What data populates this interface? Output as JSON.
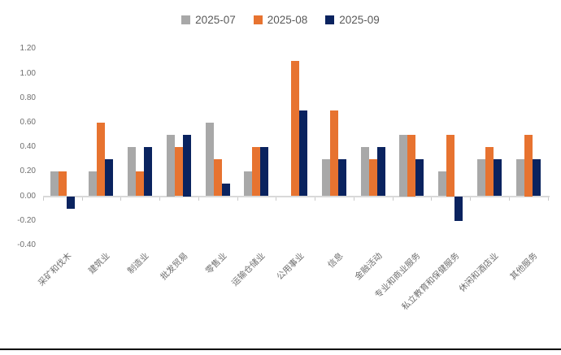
{
  "chart_data": {
    "type": "bar",
    "title": "",
    "xlabel": "",
    "ylabel": "",
    "categories": [
      "采矿和伐木",
      "建筑业",
      "制造业",
      "批发贸易",
      "零售业",
      "运输仓储业",
      "公用事业",
      "信息",
      "金融活动",
      "专业和商业服务",
      "私立教育和保健服务",
      "休闲和酒店业",
      "其他服务"
    ],
    "series": [
      {
        "name": "2025-07",
        "color": "#A8A8A8",
        "values": [
          0.2,
          0.2,
          0.4,
          0.5,
          0.6,
          0.2,
          0.0,
          0.3,
          0.4,
          0.5,
          0.2,
          0.3,
          0.3
        ]
      },
      {
        "name": "2025-08",
        "color": "#E77330",
        "values": [
          0.2,
          0.6,
          0.2,
          0.4,
          0.3,
          0.4,
          1.1,
          0.7,
          0.3,
          0.5,
          0.5,
          0.4,
          0.5
        ]
      },
      {
        "name": "2025-09",
        "color": "#0A235F",
        "values": [
          -0.1,
          0.3,
          0.4,
          0.5,
          0.1,
          0.4,
          0.7,
          0.3,
          0.4,
          0.3,
          -0.2,
          0.3,
          0.3
        ]
      }
    ],
    "ylim": [
      -0.4,
      1.2
    ],
    "ytick_labels": [
      "1.20",
      "1.00",
      "0.80",
      "0.60",
      "0.40",
      "0.20",
      "0.00",
      "-0.20",
      "-0.40"
    ],
    "ytick_values": [
      1.2,
      1.0,
      0.8,
      0.6,
      0.4,
      0.2,
      0.0,
      -0.2,
      -0.4
    ],
    "grid": false,
    "legend_position": "top-center",
    "axis_color": "#D9D9D9",
    "tick_color": "#C9C9C9",
    "label_color": "#6e6e6e",
    "legend_text_color": "#595959"
  }
}
